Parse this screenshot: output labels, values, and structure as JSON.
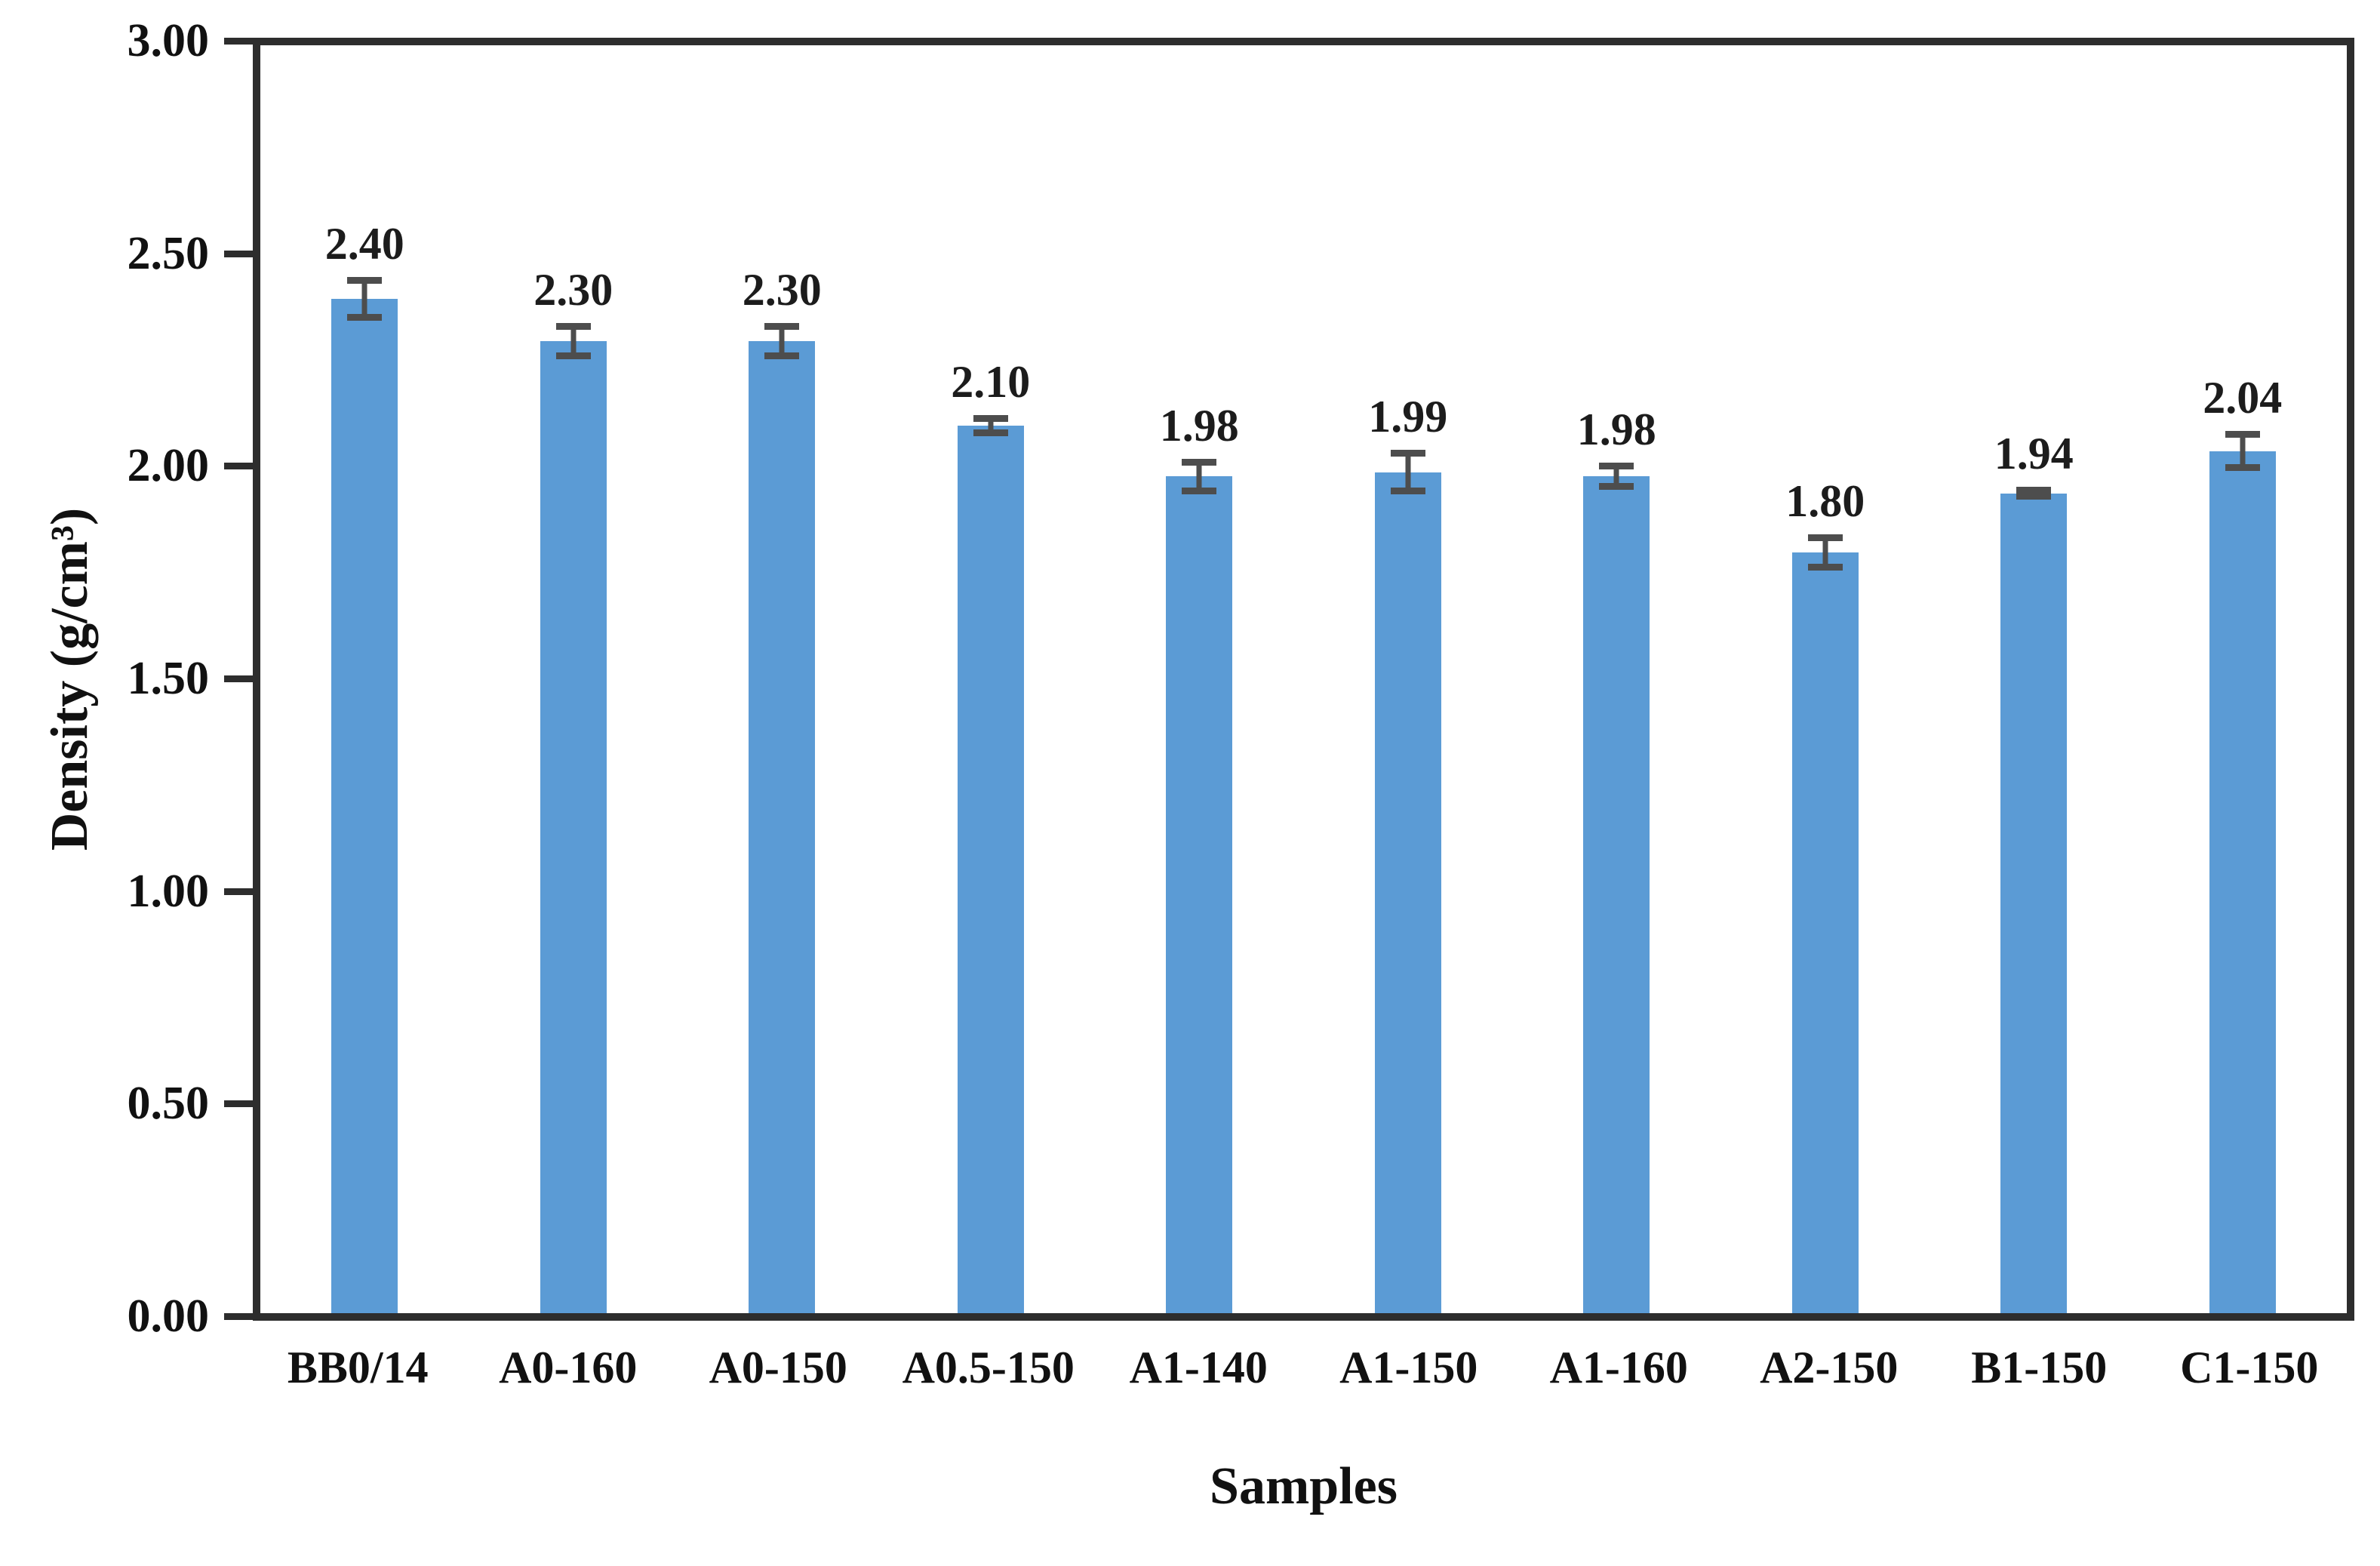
{
  "chart_data": {
    "type": "bar",
    "title": "",
    "xlabel": "Samples",
    "ylabel": "Density (g/cm³)",
    "categories": [
      "BB0/14",
      "A0-160",
      "A0-150",
      "A0.5-150",
      "A1-140",
      "A1-150",
      "A1-160",
      "A2-150",
      "B1-150",
      "C1-150"
    ],
    "values": [
      2.4,
      2.3,
      2.3,
      2.1,
      1.98,
      1.99,
      1.98,
      1.8,
      1.94,
      2.04
    ],
    "value_labels": [
      "2.40",
      "2.30",
      "2.30",
      "2.10",
      "1.98",
      "1.99",
      "1.98",
      "1.80",
      "1.94",
      "2.04"
    ],
    "errors": [
      0.045,
      0.035,
      0.035,
      0.018,
      0.035,
      0.045,
      0.025,
      0.035,
      0.008,
      0.04
    ],
    "ylim": [
      0.0,
      3.0
    ],
    "ytick_step": 0.5,
    "ytick_labels": [
      "3.00",
      "2.50",
      "2.00",
      "1.50",
      "1.00",
      "0.50",
      "0.00"
    ],
    "grid": false,
    "legend_position": "none",
    "bar_color": "#5b9bd5",
    "error_bar_color": "#4d4d4d",
    "frame_color": "#2d2d2d",
    "text_color": "#111111"
  }
}
